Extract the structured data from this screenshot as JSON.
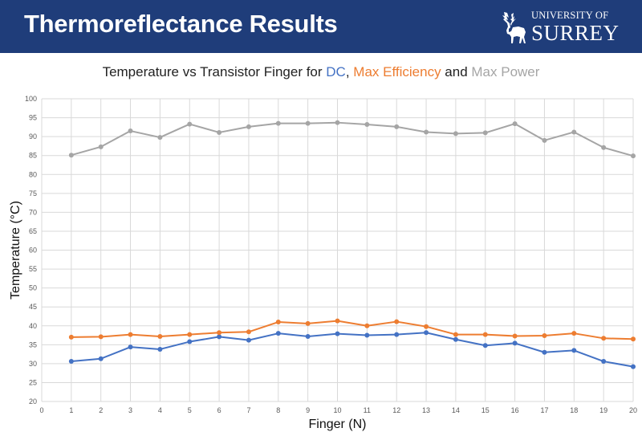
{
  "header": {
    "title": "Thermoreflectance Results",
    "logo_line1": "UNIVERSITY OF",
    "logo_line2": "SURREY"
  },
  "chart_title": {
    "prefix": "Temperature vs Transistor Finger for ",
    "dc": "DC",
    "sep": ", ",
    "eff": "Max Efficiency",
    "and": " and ",
    "pow": "Max Power"
  },
  "colors": {
    "banner": "#1f3d7a",
    "dc": "#4472c4",
    "max_efficiency": "#ed7d31",
    "max_power": "#a5a5a5"
  },
  "chart_data": {
    "type": "line",
    "xlabel": "Finger (N)",
    "ylabel": "Temperature (°C)",
    "xlim": [
      0,
      20
    ],
    "ylim": [
      20,
      100
    ],
    "x_ticks": [
      0,
      1,
      2,
      3,
      4,
      5,
      6,
      7,
      8,
      9,
      10,
      11,
      12,
      13,
      14,
      15,
      16,
      17,
      18,
      19,
      20
    ],
    "y_ticks": [
      20,
      25,
      30,
      35,
      40,
      45,
      50,
      55,
      60,
      65,
      70,
      75,
      80,
      85,
      90,
      95,
      100
    ],
    "grid": true,
    "x": [
      1,
      2,
      3,
      4,
      5,
      6,
      7,
      8,
      9,
      10,
      11,
      12,
      13,
      14,
      15,
      16,
      17,
      18,
      19,
      20
    ],
    "series": [
      {
        "name": "DC",
        "color": "#4472c4",
        "values": [
          30.6,
          31.3,
          34.4,
          33.8,
          35.8,
          37.1,
          36.2,
          38.0,
          37.2,
          37.9,
          37.5,
          37.7,
          38.2,
          36.4,
          34.8,
          35.4,
          33.0,
          33.5,
          30.6,
          29.2
        ]
      },
      {
        "name": "Max Efficiency",
        "color": "#ed7d31",
        "values": [
          37.0,
          37.1,
          37.7,
          37.2,
          37.7,
          38.2,
          38.4,
          41.0,
          40.6,
          41.3,
          40.0,
          41.1,
          39.8,
          37.7,
          37.7,
          37.3,
          37.4,
          38.0,
          36.7,
          36.5
        ]
      },
      {
        "name": "Max Power",
        "color": "#a5a5a5",
        "values": [
          85.1,
          87.3,
          91.5,
          89.8,
          93.3,
          91.1,
          92.6,
          93.5,
          93.5,
          93.7,
          93.2,
          92.6,
          91.2,
          90.8,
          91.0,
          93.4,
          89.0,
          91.2,
          87.1,
          84.9
        ]
      }
    ]
  }
}
